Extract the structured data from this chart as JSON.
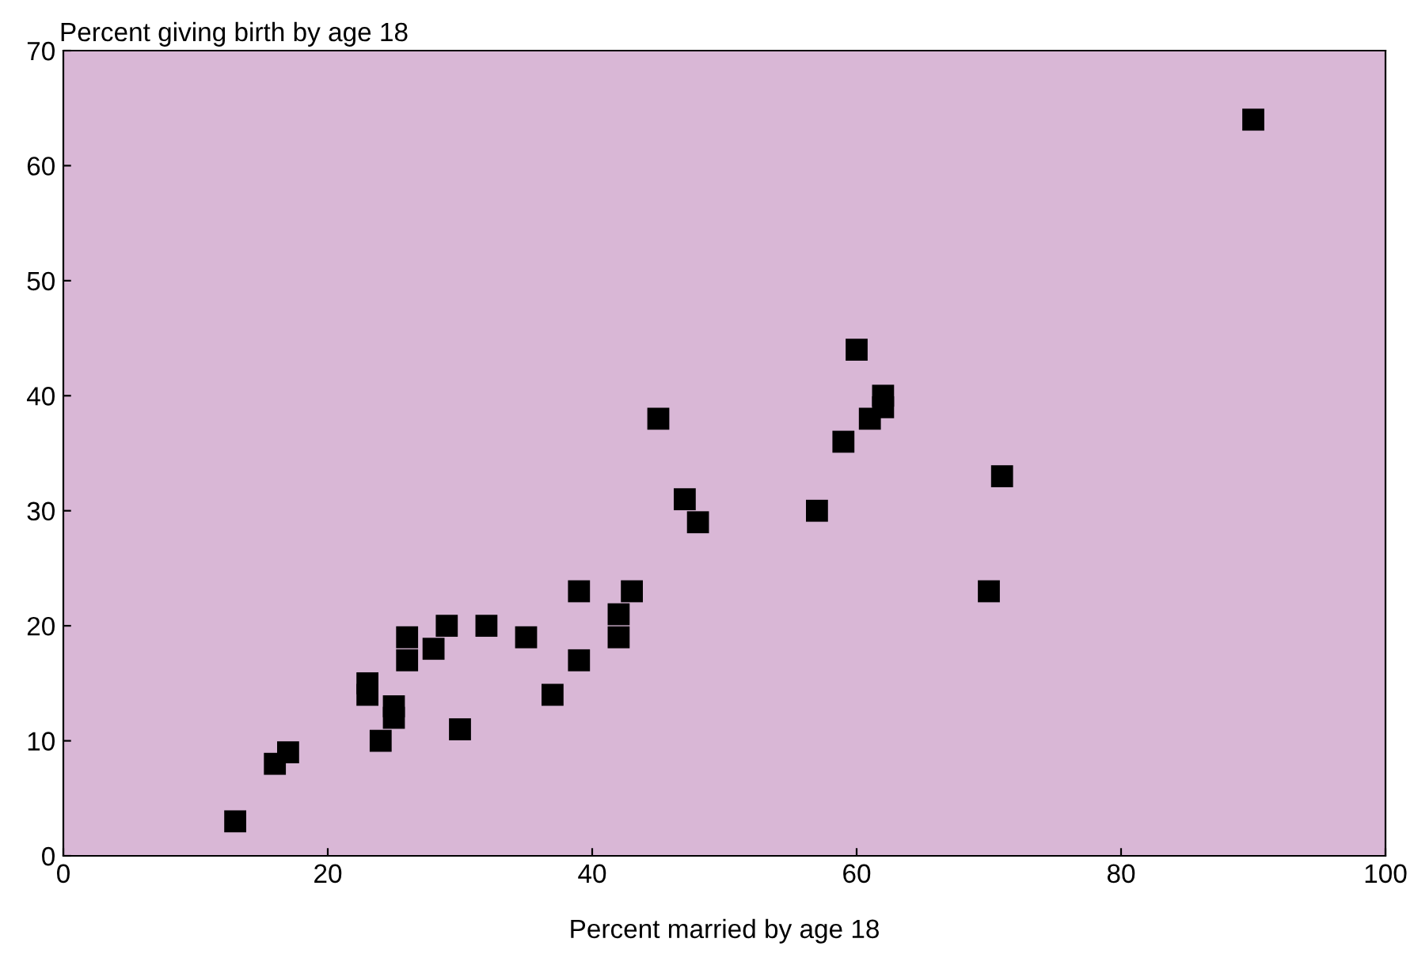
{
  "chart_data": {
    "type": "scatter",
    "xlabel": "Percent married by age 18",
    "ylabel": "Percent giving birth by age 18",
    "x": [
      13,
      16,
      17,
      23,
      23,
      24,
      25,
      25,
      26,
      26,
      28,
      29,
      30,
      32,
      35,
      37,
      39,
      39,
      42,
      42,
      43,
      45,
      47,
      48,
      57,
      59,
      60,
      61,
      62,
      62,
      70,
      71,
      90
    ],
    "series": [
      {
        "color": "#000000",
        "values": [
          3,
          8,
          9,
          15,
          14,
          10,
          13,
          12,
          19,
          17,
          18,
          20,
          11,
          20,
          19,
          14,
          23,
          17,
          21,
          19,
          23,
          38,
          31,
          29,
          30,
          36,
          44,
          38,
          40,
          39,
          23,
          33,
          64
        ]
      }
    ],
    "xlim": [
      0,
      100
    ],
    "ylim": [
      0,
      70
    ],
    "xticks": [
      0,
      20,
      40,
      60,
      80,
      100
    ],
    "yticks": [
      0,
      10,
      20,
      30,
      40,
      50,
      60,
      70
    ],
    "marker": "square",
    "grid": false,
    "legend": false
  }
}
